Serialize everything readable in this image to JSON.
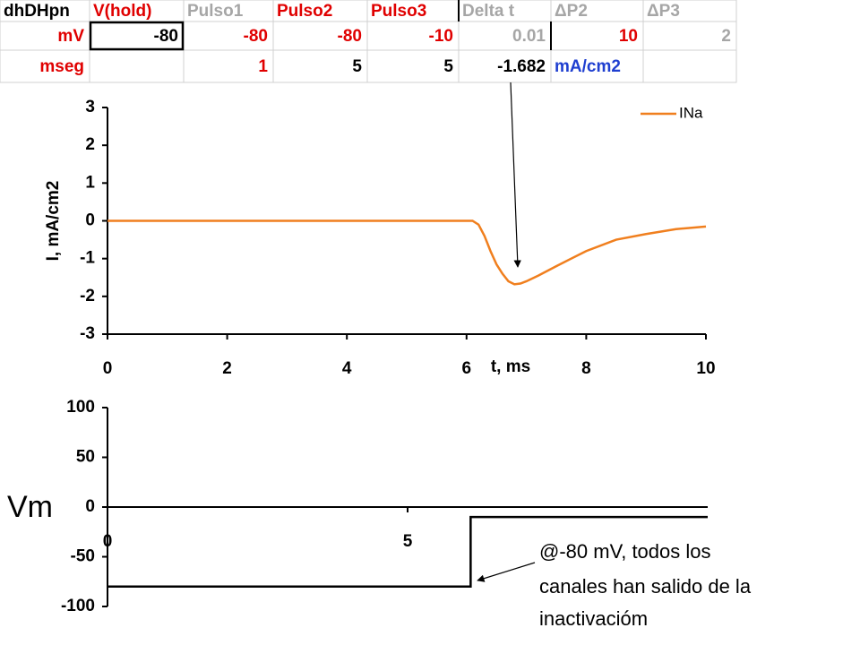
{
  "table": {
    "rows": [
      [
        "dhDHpn",
        "V(hold)",
        "Pulso1",
        "Pulso2",
        "Pulso3",
        "Delta t",
        "ΔP2",
        "ΔP3"
      ],
      [
        "mV",
        "-80",
        "-80",
        "-80",
        "-10",
        "0.01",
        "10",
        "2"
      ],
      [
        "mseg",
        "",
        "1",
        "5",
        "5",
        "-1.682",
        "mA/cm2",
        ""
      ]
    ],
    "colors": [
      [
        "#000000",
        "#e00000",
        "#a6a6a6",
        "#e00000",
        "#e00000",
        "#a6a6a6",
        "#a6a6a6",
        "#a6a6a6"
      ],
      [
        "#e00000",
        "#000000",
        "#e00000",
        "#e00000",
        "#e00000",
        "#a6a6a6",
        "#e00000",
        "#a6a6a6"
      ],
      [
        "#e00000",
        "#000000",
        "#e00000",
        "#000000",
        "#000000",
        "#000000",
        "#1f3fd0",
        "#000000"
      ]
    ]
  },
  "chart_data": [
    {
      "type": "line",
      "x_label": "t, ms",
      "y_label": "I, mA/cm2",
      "xlim": [
        0,
        10
      ],
      "xticks": [
        0,
        2,
        4,
        6,
        8,
        10
      ],
      "ylim": [
        -3,
        3
      ],
      "yticks": [
        3,
        2,
        1,
        0,
        -1,
        -2,
        -3
      ],
      "x_axis_crosses": -3,
      "legend": "upper right",
      "x": [
        0,
        6.1,
        6.2,
        6.3,
        6.4,
        6.5,
        6.6,
        6.7,
        6.8,
        6.9,
        7.0,
        7.2,
        7.5,
        8,
        8.5,
        9,
        9.5,
        10
      ],
      "series": [
        {
          "name": "INa",
          "color": "#f07f1e",
          "values": [
            0,
            0,
            -0.1,
            -0.4,
            -0.8,
            -1.15,
            -1.4,
            -1.6,
            -1.68,
            -1.66,
            -1.6,
            -1.45,
            -1.2,
            -0.8,
            -0.5,
            -0.35,
            -0.22,
            -0.15
          ]
        }
      ]
    },
    {
      "type": "line",
      "y_label": "Vm",
      "xlim": [
        0,
        10
      ],
      "xticks": [
        0,
        5
      ],
      "ylim": [
        -100,
        100
      ],
      "yticks": [
        100,
        50,
        0,
        -50,
        -100
      ],
      "x_axis_crosses": 0,
      "x": [
        0,
        6.05,
        6.05,
        10
      ],
      "series": [
        {
          "color": "#000000",
          "values": [
            -80,
            -80,
            -10,
            -10
          ]
        }
      ]
    }
  ],
  "annotation": {
    "lines": [
      "@-80 mV, todos los",
      "canales han salido de la",
      "inactivacióm"
    ]
  }
}
